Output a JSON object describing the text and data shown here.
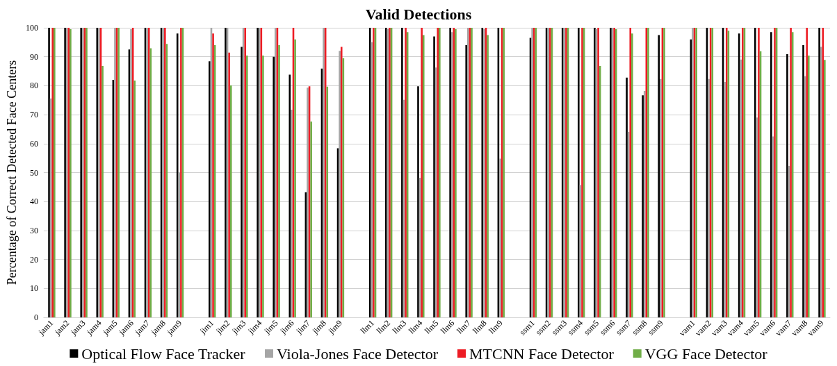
{
  "chart_data": {
    "type": "bar",
    "title": "Valid Detections",
    "ylabel": "Percentage of Correct Detected Face Centers",
    "categories": [
      "jam1",
      "jam2",
      "jam3",
      "jam4",
      "jam5",
      "jam6",
      "jam7",
      "jam8",
      "jam9",
      null,
      "jim1",
      "jim2",
      "jim3",
      "jim4",
      "jim5",
      "jim6",
      "jim7",
      "jim8",
      "jim9",
      null,
      "llm1",
      "llm2",
      "llm3",
      "llm4",
      "llm5",
      "llm6",
      "llm7",
      "llm8",
      "llm9",
      null,
      "ssm1",
      "ssm2",
      "ssm3",
      "ssm4",
      "ssm5",
      "ssm6",
      "ssm7",
      "ssm8",
      "ssm9",
      null,
      "vam1",
      "vam2",
      "vam3",
      "vam4",
      "vam5",
      "vam6",
      "vam7",
      "vam8",
      "vam9"
    ],
    "series": [
      {
        "name": "Optical Flow Face Tracker",
        "color": "#000000",
        "values": [
          100,
          100,
          100,
          100,
          82,
          92.5,
          100,
          100,
          98,
          null,
          88.4,
          100,
          93.4,
          100,
          90,
          83.8,
          43.2,
          85.9,
          58.4,
          null,
          100,
          100,
          100,
          79.8,
          97,
          100,
          94,
          100,
          100,
          null,
          96.5,
          100,
          100,
          100,
          100,
          100,
          82.8,
          76.7,
          97.5,
          null,
          96,
          100,
          100,
          98,
          100,
          98.5,
          90.9,
          94,
          100
        ]
      },
      {
        "name": "Viola-Jones Face Detector",
        "color": "#a5a5a5",
        "values": [
          75.6,
          100,
          100,
          100,
          100,
          99.5,
          100,
          100,
          50,
          null,
          100,
          100,
          100,
          100,
          100,
          71.7,
          79.3,
          100,
          92,
          null,
          95,
          99.5,
          75.1,
          48.2,
          86.3,
          98.5,
          100,
          99.5,
          54.8,
          null,
          100,
          100,
          100,
          45.7,
          99.5,
          100,
          64,
          78.2,
          82.3,
          null,
          100,
          82.3,
          81.3,
          89,
          69,
          62.5,
          52.3,
          83.3,
          93.4
        ]
      },
      {
        "name": "MTCNN Face Detector",
        "color": "#ed1c24",
        "values": [
          100,
          100,
          100,
          100,
          100,
          100,
          100,
          100,
          100,
          null,
          98,
          91.4,
          100,
          100,
          100,
          100,
          79.8,
          100,
          93.4,
          null,
          100,
          100,
          100,
          100,
          100,
          100,
          100,
          100,
          100,
          null,
          100,
          100,
          100,
          100,
          100,
          100,
          100,
          100,
          100,
          null,
          100,
          100,
          100,
          100,
          100,
          100,
          100,
          100,
          100
        ]
      },
      {
        "name": "VGG Face Detector",
        "color": "#70ad47",
        "values": [
          100,
          99.5,
          100,
          86.8,
          100,
          81.8,
          92.9,
          94.4,
          100,
          null,
          94,
          80.1,
          90.4,
          90.4,
          94,
          96,
          67.6,
          79.7,
          89.5,
          null,
          100,
          100,
          98.5,
          97.5,
          100,
          99.5,
          100,
          97.5,
          100,
          null,
          100,
          100,
          100,
          100,
          86.8,
          99.5,
          98,
          100,
          100,
          null,
          100,
          100,
          99,
          100,
          91.9,
          100,
          98.5,
          90.4,
          88.9
        ]
      }
    ],
    "ylim": [
      0,
      100
    ],
    "yticks": [
      0,
      10,
      20,
      30,
      40,
      50,
      60,
      70,
      80,
      90,
      100
    ],
    "grid": "y",
    "legend": "bottom"
  }
}
